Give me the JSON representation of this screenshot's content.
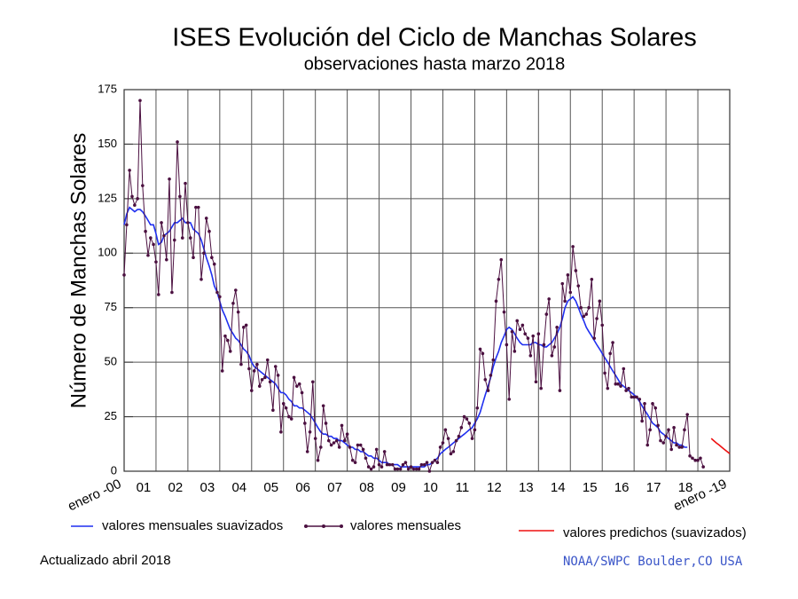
{
  "chart_data": {
    "type": "line",
    "title": "ISES Evolución del Ciclo de Manchas Solares",
    "subtitle": "observaciones hasta marzo 2018",
    "y_label": "Número de Manchas Solares",
    "updated": "Actualizado abril 2018",
    "source": "NOAA/SWPC Boulder,CO USA",
    "xlim": [
      2000,
      2019
    ],
    "xticks": [
      {
        "value": 2000,
        "label": "enero -00"
      },
      {
        "value": 2001,
        "label": "01"
      },
      {
        "value": 2002,
        "label": "02"
      },
      {
        "value": 2003,
        "label": "03"
      },
      {
        "value": 2004,
        "label": "04"
      },
      {
        "value": 2005,
        "label": "05"
      },
      {
        "value": 2006,
        "label": "06"
      },
      {
        "value": 2007,
        "label": "07"
      },
      {
        "value": 2008,
        "label": "08"
      },
      {
        "value": 2009,
        "label": "09"
      },
      {
        "value": 2010,
        "label": "10"
      },
      {
        "value": 2011,
        "label": "11"
      },
      {
        "value": 2012,
        "label": "12"
      },
      {
        "value": 2013,
        "label": "13"
      },
      {
        "value": 2014,
        "label": "14"
      },
      {
        "value": 2015,
        "label": "15"
      },
      {
        "value": 2016,
        "label": "16"
      },
      {
        "value": 2017,
        "label": "17"
      },
      {
        "value": 2018,
        "label": "18"
      },
      {
        "value": 2019,
        "label": "enero -19"
      }
    ],
    "ylim": [
      0,
      175
    ],
    "yticks": [
      0,
      25,
      50,
      75,
      100,
      125,
      150,
      175
    ],
    "grid": true,
    "x": [
      2000,
      2000.08,
      2000.17,
      2000.25,
      2000.33,
      2000.42,
      2000.5,
      2000.58,
      2000.67,
      2000.75,
      2000.83,
      2000.92,
      2001,
      2001.08,
      2001.17,
      2001.25,
      2001.33,
      2001.42,
      2001.5,
      2001.58,
      2001.67,
      2001.75,
      2001.83,
      2001.92,
      2002,
      2002.08,
      2002.17,
      2002.25,
      2002.33,
      2002.42,
      2002.5,
      2002.58,
      2002.67,
      2002.75,
      2002.83,
      2002.92,
      2003,
      2003.08,
      2003.17,
      2003.25,
      2003.33,
      2003.42,
      2003.5,
      2003.58,
      2003.67,
      2003.75,
      2003.83,
      2003.92,
      2004,
      2004.08,
      2004.17,
      2004.25,
      2004.33,
      2004.42,
      2004.5,
      2004.58,
      2004.67,
      2004.75,
      2004.83,
      2004.92,
      2005,
      2005.08,
      2005.17,
      2005.25,
      2005.33,
      2005.42,
      2005.5,
      2005.58,
      2005.67,
      2005.75,
      2005.83,
      2005.92,
      2006,
      2006.08,
      2006.17,
      2006.25,
      2006.33,
      2006.42,
      2006.5,
      2006.58,
      2006.67,
      2006.75,
      2006.83,
      2006.92,
      2007,
      2007.08,
      2007.17,
      2007.25,
      2007.33,
      2007.42,
      2007.5,
      2007.58,
      2007.67,
      2007.75,
      2007.83,
      2007.92,
      2008,
      2008.08,
      2008.17,
      2008.25,
      2008.33,
      2008.42,
      2008.5,
      2008.58,
      2008.67,
      2008.75,
      2008.83,
      2008.92,
      2009,
      2009.08,
      2009.17,
      2009.25,
      2009.33,
      2009.42,
      2009.5,
      2009.58,
      2009.67,
      2009.75,
      2009.83,
      2009.92,
      2010,
      2010.08,
      2010.17,
      2010.25,
      2010.33,
      2010.42,
      2010.5,
      2010.58,
      2010.67,
      2010.75,
      2010.83,
      2010.92,
      2011,
      2011.08,
      2011.17,
      2011.25,
      2011.33,
      2011.42,
      2011.5,
      2011.58,
      2011.67,
      2011.75,
      2011.83,
      2011.92,
      2012,
      2012.08,
      2012.17,
      2012.25,
      2012.33,
      2012.42,
      2012.5,
      2012.58,
      2012.67,
      2012.75,
      2012.83,
      2012.92,
      2013,
      2013.08,
      2013.17,
      2013.25,
      2013.33,
      2013.42,
      2013.5,
      2013.58,
      2013.67,
      2013.75,
      2013.83,
      2013.92,
      2014,
      2014.08,
      2014.17,
      2014.25,
      2014.33,
      2014.42,
      2014.5,
      2014.58,
      2014.67,
      2014.75,
      2014.83,
      2014.92,
      2015,
      2015.08,
      2015.17,
      2015.25,
      2015.33,
      2015.42,
      2015.5,
      2015.58,
      2015.67,
      2015.75,
      2015.83,
      2015.92,
      2016,
      2016.08,
      2016.17,
      2016.25,
      2016.33,
      2016.42,
      2016.5,
      2016.58,
      2016.67,
      2016.75,
      2016.83,
      2016.92,
      2017,
      2017.08,
      2017.17,
      2017.25,
      2017.33,
      2017.42,
      2017.5,
      2017.58,
      2017.67,
      2017.75,
      2017.83,
      2017.92,
      2018,
      2018.08,
      2018.17
    ],
    "series": [
      {
        "name": "valores mensuales suavizados",
        "color": "#1f2ff0",
        "markers": false,
        "values": [
          113,
          118,
          121,
          120,
          119,
          120,
          120,
          119,
          117,
          115,
          113,
          113,
          109,
          104,
          105,
          108,
          109,
          110,
          112,
          114,
          114,
          115,
          116,
          114,
          114,
          114,
          111,
          110,
          109,
          106,
          102,
          98,
          94,
          90,
          85,
          82,
          78,
          74,
          71,
          68,
          65,
          63,
          61,
          60,
          58,
          56,
          55,
          53,
          50,
          48,
          47,
          46,
          45,
          44,
          43,
          42,
          41,
          40,
          38,
          36,
          36,
          35,
          33,
          32,
          30,
          30,
          29,
          29,
          28,
          27,
          26,
          24,
          22,
          20,
          18,
          17,
          17,
          16,
          16,
          15,
          15,
          14,
          14,
          13,
          12,
          11,
          11,
          10,
          10,
          9,
          9,
          8,
          7,
          7,
          6,
          6,
          5,
          4,
          4,
          4,
          3,
          3,
          3,
          3,
          2,
          2,
          2,
          2,
          2,
          2,
          2,
          2,
          2,
          2,
          3,
          3,
          4,
          5,
          6,
          8,
          9,
          10,
          11,
          12,
          13,
          14,
          15,
          16,
          17,
          18,
          19,
          20,
          22,
          24,
          27,
          31,
          35,
          39,
          43,
          48,
          52,
          55,
          59,
          62,
          65,
          66,
          65,
          63,
          61,
          59,
          58,
          58,
          58,
          58,
          59,
          59,
          58,
          58,
          57,
          57,
          58,
          59,
          61,
          63,
          66,
          70,
          75,
          78,
          79,
          80,
          78,
          75,
          72,
          69,
          66,
          64,
          62,
          60,
          58,
          56,
          54,
          52,
          50,
          48,
          46,
          44,
          42,
          40,
          39,
          38,
          37,
          36,
          35,
          34,
          32,
          30,
          28,
          26,
          24,
          22,
          21,
          20,
          18,
          17,
          16,
          15,
          14,
          13,
          13,
          12,
          12,
          11,
          11,
          null,
          null,
          null,
          null,
          null,
          null
        ]
      },
      {
        "name": "valores mensuales",
        "color": "#4b1040",
        "markers": true,
        "values": [
          90,
          113,
          138,
          126,
          122,
          125,
          170,
          131,
          110,
          99,
          107,
          104,
          96,
          81,
          114,
          108,
          97,
          134,
          82,
          106,
          151,
          126,
          107,
          132,
          114,
          107,
          98,
          121,
          121,
          88,
          100,
          116,
          110,
          98,
          95,
          82,
          80,
          46,
          62,
          60,
          55,
          77,
          83,
          73,
          49,
          66,
          67,
          47,
          37,
          46,
          49,
          39,
          42,
          43,
          51,
          41,
          28,
          48,
          44,
          18,
          31,
          29,
          25,
          24,
          43,
          39,
          40,
          36,
          22,
          9,
          18,
          41,
          15,
          5,
          11,
          30,
          22,
          14,
          12,
          13,
          14,
          11,
          21,
          14,
          17,
          11,
          5,
          4,
          12,
          12,
          10,
          6,
          2,
          1,
          2,
          10,
          3,
          2,
          9,
          3,
          3,
          3,
          1,
          1,
          1,
          3,
          4,
          1,
          2,
          1,
          1,
          1,
          3,
          3,
          4,
          0,
          4,
          5,
          4,
          11,
          13,
          19,
          15,
          8,
          9,
          14,
          16,
          20,
          25,
          24,
          22,
          15,
          19,
          29,
          56,
          54,
          42,
          37,
          44,
          51,
          78,
          88,
          97,
          73,
          58,
          33,
          64,
          55,
          69,
          65,
          67,
          63,
          61,
          53,
          62,
          41,
          63,
          38,
          58,
          72,
          79,
          53,
          57,
          66,
          37,
          86,
          78,
          90,
          82,
          103,
          92,
          85,
          75,
          71,
          72,
          75,
          88,
          61,
          70,
          78,
          67,
          45,
          38,
          54,
          59,
          40,
          40,
          39,
          47,
          37,
          38,
          34,
          34,
          34,
          33,
          23,
          31,
          12,
          19,
          31,
          29,
          21,
          14,
          13,
          16,
          19,
          10,
          20,
          12,
          11,
          11,
          19,
          26,
          7,
          6,
          5,
          5,
          6,
          2
        ]
      },
      {
        "name": "valores predichos (suavizados)",
        "color": "#ee1111",
        "markers": false,
        "x": [
          2018.42,
          2018.5,
          2018.58,
          2018.67,
          2018.75,
          2018.83,
          2018.92,
          2019
        ],
        "values": [
          15,
          14,
          13,
          12,
          11,
          10,
          9,
          8
        ]
      }
    ]
  }
}
